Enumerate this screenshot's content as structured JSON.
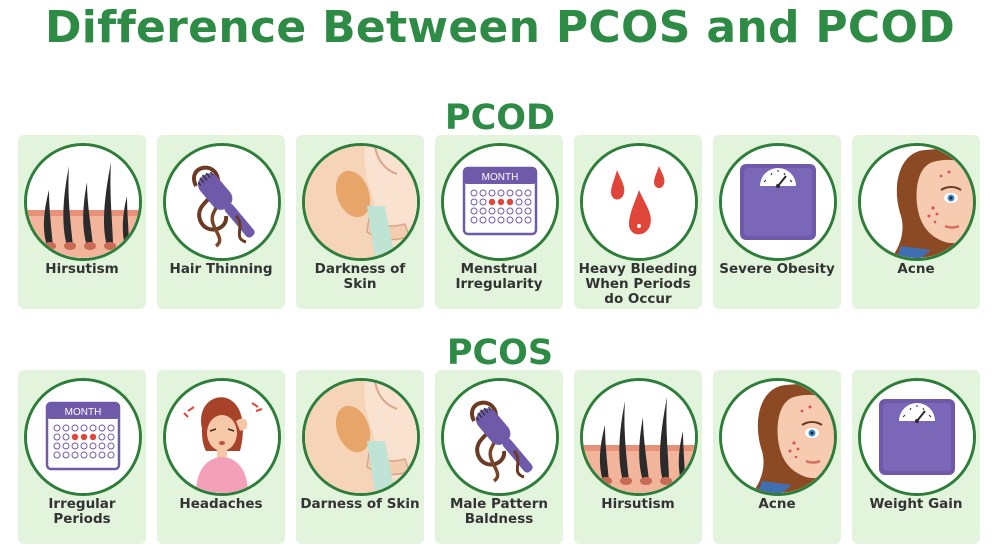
{
  "page": {
    "title": "Difference Between PCOS and PCOD",
    "accent_color": "#2e8b45",
    "card_color": "#e2f5dc"
  },
  "pcod": {
    "title": "PCOD",
    "items": [
      {
        "label": "Hirsutism",
        "icon": "hair-follicles-icon"
      },
      {
        "label": "Hair Thinning",
        "icon": "hairbrush-hair-loss-icon"
      },
      {
        "label": "Darkness of Skin",
        "icon": "dark-underarm-icon"
      },
      {
        "label": "Menstrual Irregularity",
        "icon": "calendar-icon",
        "calendar_header": "MONTH"
      },
      {
        "label": "Heavy Bleeding When Periods do Occur",
        "icon": "blood-drops-icon"
      },
      {
        "label": "Severe Obesity",
        "icon": "weighing-scale-icon"
      },
      {
        "label": "Acne",
        "icon": "acne-face-icon"
      }
    ]
  },
  "pcos": {
    "title": "PCOS",
    "items": [
      {
        "label": "Irregular Periods",
        "icon": "calendar-icon",
        "calendar_header": "MONTH"
      },
      {
        "label": "Headaches",
        "icon": "headache-woman-icon"
      },
      {
        "label": "Darness of Skin",
        "icon": "dark-underarm-icon"
      },
      {
        "label": "Male Pattern Baldness",
        "icon": "hairbrush-hair-loss-icon"
      },
      {
        "label": "Hirsutism",
        "icon": "hair-follicles-icon"
      },
      {
        "label": "Acne",
        "icon": "acne-face-icon"
      },
      {
        "label": "Weight Gain",
        "icon": "weighing-scale-icon"
      }
    ]
  }
}
